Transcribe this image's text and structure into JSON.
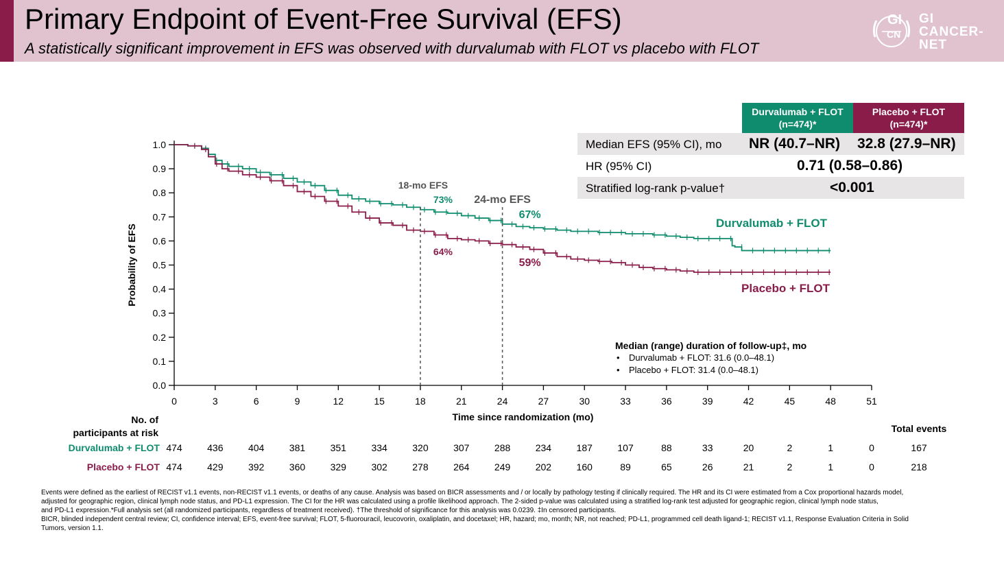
{
  "header": {
    "title": "Primary Endpoint of Event-Free Survival (EFS)",
    "subtitle": "A statistically significant improvement in EFS was observed with durvalumab with FLOT vs placebo with FLOT",
    "logo": {
      "badge_top": "GI",
      "badge_bottom": "CN",
      "lines": [
        "GI",
        "CANCER-",
        "NET"
      ]
    },
    "colors": {
      "band": "#e0c3cf",
      "accent": "#8a1c4a"
    }
  },
  "stats_table": {
    "columns": [
      "Durvalumab + FLOT\n(n=474)*",
      "Placebo + FLOT\n(n=474)*"
    ],
    "rows": [
      {
        "label": "Median EFS (95% CI), mo",
        "durva": "NR (40.7–NR)",
        "placebo": "32.8 (27.9–NR)"
      },
      {
        "label": "HR (95% CI)",
        "combined": "0.71 (0.58–0.86)"
      },
      {
        "label": "Stratified log-rank p-value†",
        "combined": "<0.001"
      }
    ]
  },
  "chart_data": {
    "type": "line",
    "subtype": "kaplan-meier",
    "xlabel": "Time since randomization (mo)",
    "ylabel": "Probability of EFS",
    "xlim": [
      0,
      51
    ],
    "ylim": [
      0,
      1.0
    ],
    "x_ticks": [
      0,
      3,
      6,
      9,
      12,
      15,
      18,
      21,
      24,
      27,
      30,
      33,
      36,
      39,
      42,
      45,
      48,
      51
    ],
    "y_ticks": [
      "0.0",
      "0.1",
      "0.2",
      "0.3",
      "0.4",
      "0.5",
      "0.6",
      "0.7",
      "0.8",
      "0.9",
      "1.0"
    ],
    "series": [
      {
        "name": "Durvalumab + FLOT",
        "color": "#0f8c6e",
        "dashed": false,
        "points": [
          [
            0,
            1.0
          ],
          [
            1,
            0.995
          ],
          [
            2,
            0.985
          ],
          [
            2.5,
            0.96
          ],
          [
            3,
            0.935
          ],
          [
            3.5,
            0.92
          ],
          [
            4,
            0.91
          ],
          [
            5,
            0.9
          ],
          [
            6,
            0.885
          ],
          [
            7,
            0.875
          ],
          [
            8,
            0.86
          ],
          [
            9,
            0.845
          ],
          [
            10,
            0.83
          ],
          [
            11,
            0.81
          ],
          [
            12,
            0.79
          ],
          [
            13,
            0.775
          ],
          [
            14,
            0.765
          ],
          [
            15,
            0.755
          ],
          [
            16,
            0.75
          ],
          [
            17,
            0.74
          ],
          [
            18,
            0.73
          ],
          [
            19,
            0.72
          ],
          [
            20,
            0.715
          ],
          [
            21,
            0.705
          ],
          [
            22,
            0.695
          ],
          [
            23,
            0.685
          ],
          [
            24,
            0.67
          ],
          [
            25,
            0.66
          ],
          [
            26,
            0.655
          ],
          [
            27,
            0.65
          ],
          [
            28,
            0.645
          ],
          [
            29,
            0.64
          ],
          [
            30,
            0.64
          ],
          [
            31,
            0.635
          ],
          [
            32,
            0.635
          ],
          [
            33,
            0.63
          ],
          [
            34,
            0.63
          ],
          [
            35,
            0.625
          ],
          [
            36,
            0.62
          ],
          [
            37,
            0.615
          ],
          [
            38,
            0.61
          ],
          [
            39,
            0.61
          ],
          [
            40,
            0.61
          ],
          [
            40.8,
            0.58
          ],
          [
            41,
            0.575
          ],
          [
            41.5,
            0.56
          ],
          [
            43,
            0.56
          ],
          [
            45,
            0.56
          ],
          [
            48,
            0.56
          ]
        ]
      },
      {
        "name": "Placebo + FLOT",
        "color": "#8a1c4a",
        "dashed": false,
        "points": [
          [
            0,
            1.0
          ],
          [
            1,
            0.995
          ],
          [
            2,
            0.98
          ],
          [
            2.5,
            0.95
          ],
          [
            3,
            0.92
          ],
          [
            3.5,
            0.9
          ],
          [
            4,
            0.89
          ],
          [
            5,
            0.875
          ],
          [
            6,
            0.865
          ],
          [
            7,
            0.85
          ],
          [
            8,
            0.83
          ],
          [
            9,
            0.805
          ],
          [
            10,
            0.785
          ],
          [
            11,
            0.765
          ],
          [
            12,
            0.745
          ],
          [
            13,
            0.72
          ],
          [
            14,
            0.695
          ],
          [
            15,
            0.675
          ],
          [
            16,
            0.665
          ],
          [
            17,
            0.645
          ],
          [
            18,
            0.64
          ],
          [
            19,
            0.625
          ],
          [
            20,
            0.61
          ],
          [
            21,
            0.605
          ],
          [
            22,
            0.6
          ],
          [
            23,
            0.59
          ],
          [
            24,
            0.585
          ],
          [
            25,
            0.575
          ],
          [
            26,
            0.565
          ],
          [
            27,
            0.55
          ],
          [
            28,
            0.535
          ],
          [
            29,
            0.525
          ],
          [
            30,
            0.52
          ],
          [
            31,
            0.515
          ],
          [
            32,
            0.51
          ],
          [
            33,
            0.5
          ],
          [
            34,
            0.49
          ],
          [
            35,
            0.485
          ],
          [
            36,
            0.48
          ],
          [
            37,
            0.475
          ],
          [
            38,
            0.47
          ],
          [
            39,
            0.47
          ],
          [
            42,
            0.47
          ],
          [
            45,
            0.47
          ],
          [
            48,
            0.47
          ]
        ]
      }
    ],
    "series_labels": [
      "Durvalumab + FLOT",
      "Placebo + FLOT"
    ],
    "landmarks": [
      {
        "label": "18-mo EFS",
        "x": 18,
        "durva": "73%",
        "placebo": "64%"
      },
      {
        "label": "24-mo EFS",
        "x": 24,
        "durva": "67%",
        "placebo": "59%"
      }
    ],
    "followup": {
      "title": "Median (range) duration of follow-up‡, mo",
      "items": [
        "Durvalumab + FLOT: 31.6 (0.0–48.1)",
        "Placebo + FLOT: 31.4 (0.0–48.1)"
      ]
    },
    "at_risk": {
      "header": [
        "No. of",
        "participants at risk"
      ],
      "total_header": "Total events",
      "rows": [
        {
          "name": "Durvalumab + FLOT",
          "color": "#0f8c6e",
          "values": [
            474,
            436,
            404,
            381,
            351,
            334,
            320,
            307,
            288,
            234,
            187,
            107,
            88,
            33,
            20,
            2,
            1,
            0
          ],
          "total": 167
        },
        {
          "name": "Placebo + FLOT",
          "color": "#8a1c4a",
          "values": [
            474,
            429,
            392,
            360,
            329,
            302,
            278,
            264,
            249,
            202,
            160,
            89,
            65,
            26,
            21,
            2,
            1,
            0
          ],
          "total": 218
        }
      ]
    }
  },
  "footnotes": [
    "Events were defined as the earliest of RECIST v1.1 events, non-RECIST v1.1 events, or deaths of any cause. Analysis was based on BICR assessments and / or locally by pathology testing if clinically required. The HR and its CI were estimated from a Cox proportional hazards model,",
    "adjusted for geographic region, clinical lymph node status, and PD-L1 expression. The CI for the HR was calculated using a profile likelihood approach. The 2-sided p-value was calculated using a stratified log-rank test adjusted for geographic region, clinical lymph node status,",
    "and PD-L1 expression.*Full analysis set (all randomized participants, regardless of treatment received). †The threshold of significance for this analysis was 0.0239. ‡In censored participants.",
    "BICR, blinded independent central review; CI, confidence interval; EFS, event-free survival; FLOT, 5-fluorouracil, leucovorin, oxaliplatin, and docetaxel; HR, hazard; mo, month; NR, not reached; PD-L1, programmed cell death ligand-1; RECIST v1.1, Response Evaluation Criteria in Solid",
    "Tumors, version 1.1."
  ]
}
